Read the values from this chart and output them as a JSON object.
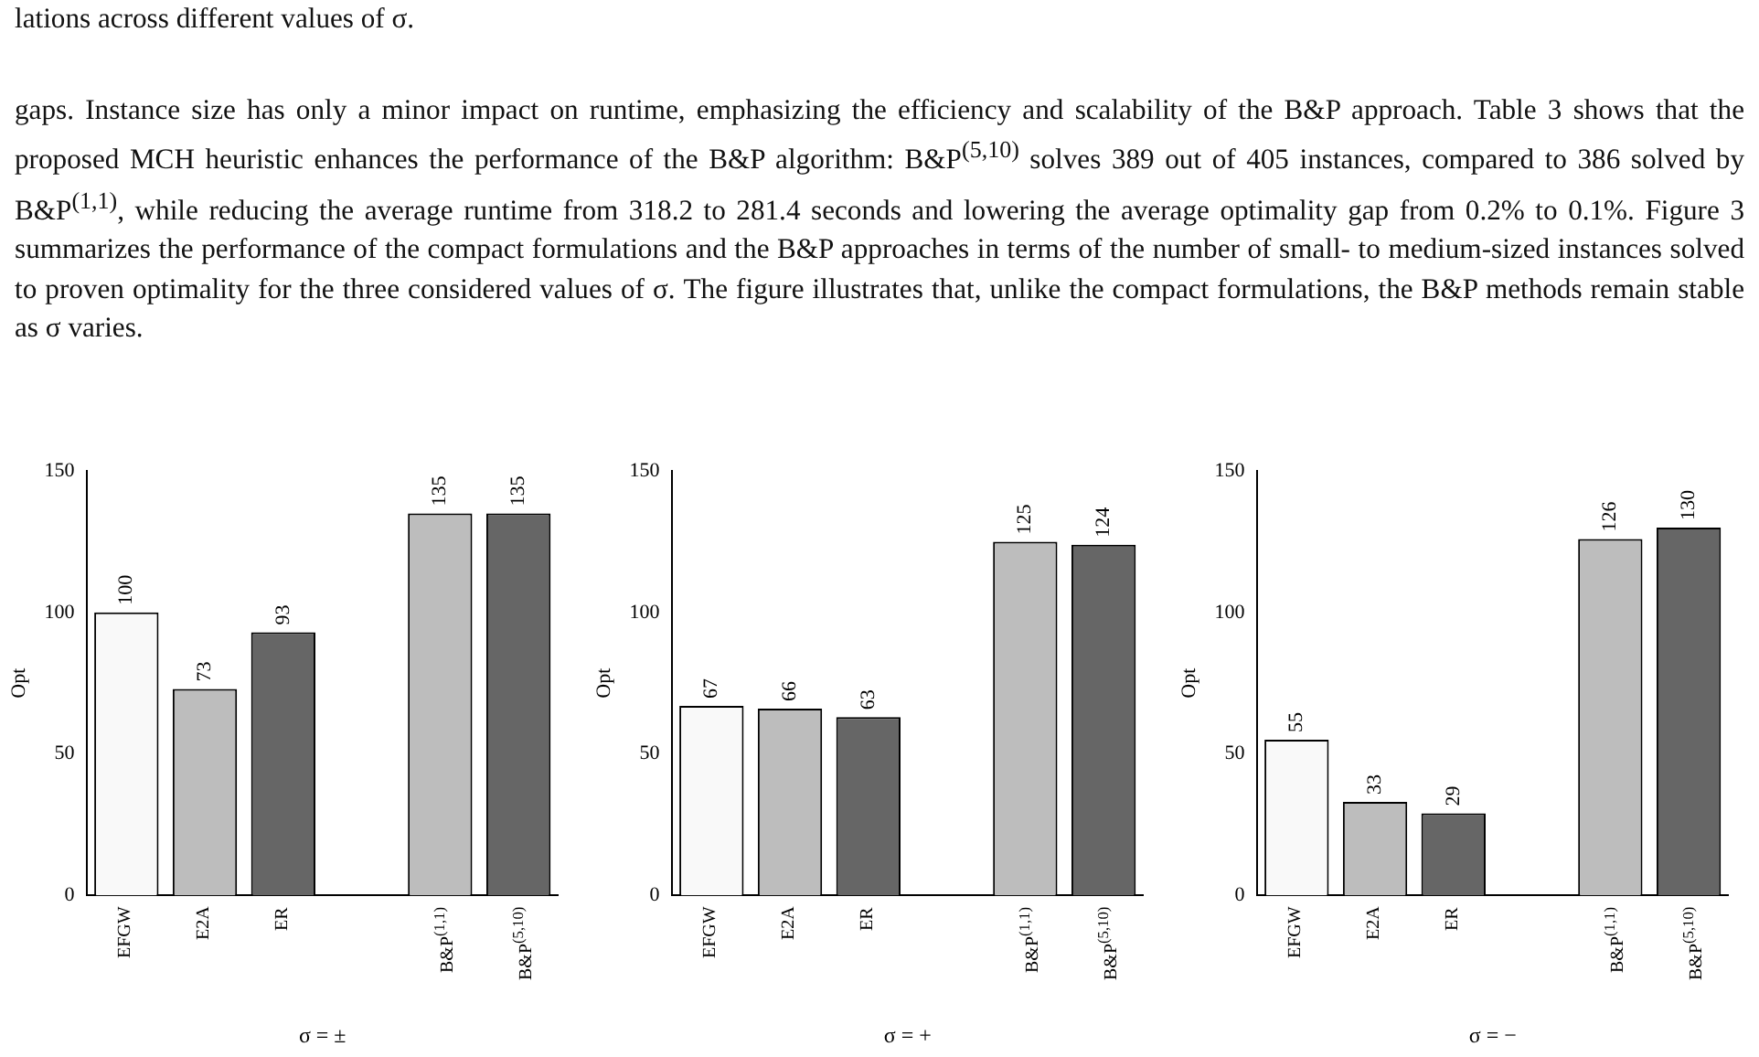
{
  "chart_data": [
    {
      "type": "other",
      "annotations": [
        "lations across different values of σ.",
        "gaps. Instance size has only a minor impact on runtime, emphasizing the efficiency and scalability of the B&P approach. Table 3 shows that the proposed MCH heuristic enhances the performance of the B&P algorithm: B&P$^{(5,10)}$ solves 389 out of 405 instances, compared to 386 solved by B&P$^{(1,1)}$, while reducing the average runtime from 318.2 to 281.4 seconds and lowering the average optimality gap from 0.2% to 0.1%. Figure 3 summarizes the performance of the compact formulations and the B&P approaches in terms of the number of small- to medium-sized instances solved to proven optimality for the three considered values of σ. The figure illustrates that, unlike the compact formulations, the B&P methods remain stable as σ varies."
      ]
    },
    {
      "type": "bar",
      "xlabel": "σ = ±",
      "ylabel": "Opt",
      "categories": [
        "EFGW",
        "E2A",
        "ER",
        null,
        "B&P$^{(1,1)}$",
        "B&P$^{(5,10)}$"
      ],
      "values": [
        100,
        73,
        93,
        null,
        135,
        135
      ],
      "colors": [
        "#f9f9f9",
        "#bdbdbd",
        "#666666",
        "#ffffff",
        "#bdbdbd",
        "#666666"
      ],
      "ylim": [
        0,
        150
      ],
      "yticks": [
        0,
        50,
        100,
        150
      ],
      "data_labels": true
    },
    {
      "type": "bar",
      "xlabel": "σ = +",
      "ylabel": "Opt",
      "categories": [
        "EFGW",
        "E2A",
        "ER",
        null,
        "B&P$^{(1,1)}$",
        "B&P$^{(5,10)}$"
      ],
      "values": [
        67,
        66,
        63,
        null,
        125,
        124
      ],
      "colors": [
        "#f9f9f9",
        "#bdbdbd",
        "#666666",
        "#ffffff",
        "#bdbdbd",
        "#666666"
      ],
      "ylim": [
        0,
        150
      ],
      "yticks": [
        0,
        50,
        100,
        150
      ],
      "data_labels": true
    },
    {
      "type": "bar",
      "xlabel": "σ = −",
      "ylabel": "Opt",
      "categories": [
        "EFGW",
        "E2A",
        "ER",
        null,
        "B&P$^{(1,1)}$",
        "B&P$^{(5,10)}$"
      ],
      "values": [
        55,
        33,
        29,
        null,
        126,
        130
      ],
      "colors": [
        "#f9f9f9",
        "#bdbdbd",
        "#666666",
        "#ffffff",
        "#bdbdbd",
        "#666666"
      ],
      "ylim": [
        0,
        150
      ],
      "yticks": [
        0,
        50,
        100,
        150
      ],
      "data_labels": true
    }
  ]
}
